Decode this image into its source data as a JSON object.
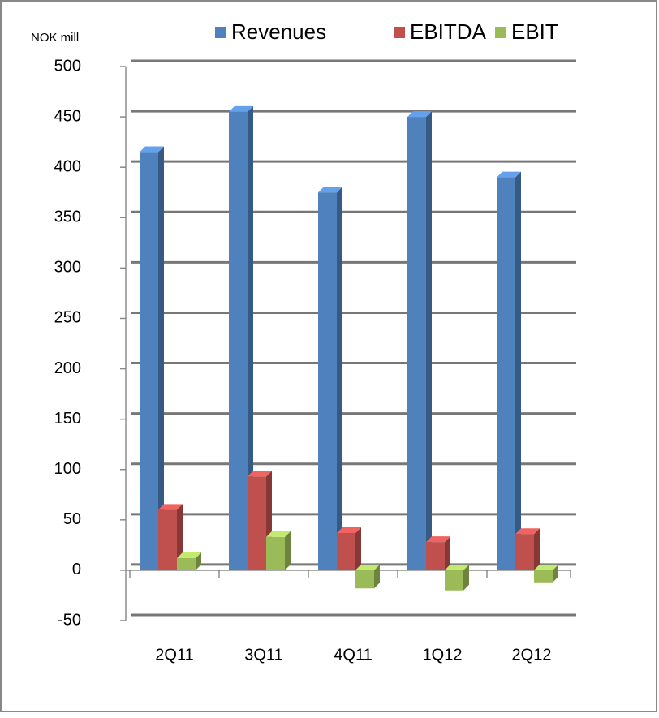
{
  "chart_data": {
    "type": "bar3d",
    "y_label": "NOK mill",
    "categories": [
      "2Q11",
      "3Q11",
      "4Q11",
      "1Q12",
      "2Q12"
    ],
    "series": [
      {
        "name": "Revenues",
        "color": "#4f81bd",
        "values": [
          415,
          455,
          375,
          450,
          390
        ]
      },
      {
        "name": "EBITDA",
        "color": "#c0504d",
        "values": [
          60,
          93,
          37,
          28,
          36
        ]
      },
      {
        "name": "EBIT",
        "color": "#9bbb59",
        "values": [
          12,
          33,
          -18,
          -20,
          -12
        ]
      }
    ],
    "ylim": [
      -50,
      500
    ],
    "yticks": [
      -50,
      0,
      50,
      100,
      150,
      200,
      250,
      300,
      350,
      400,
      450,
      500
    ],
    "grid": true,
    "legend": "top"
  }
}
